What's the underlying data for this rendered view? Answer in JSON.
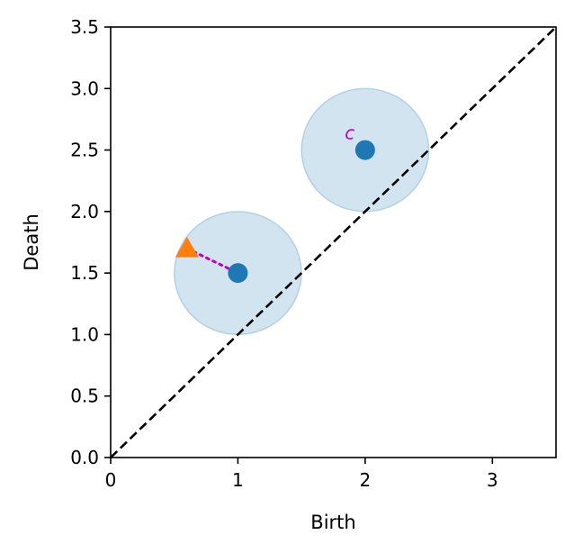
{
  "chart_data": {
    "type": "scatter",
    "xlabel": "Birth",
    "ylabel": "Death",
    "xlim": [
      0,
      3.5
    ],
    "ylim": [
      0,
      3.5
    ],
    "xticks": [
      {
        "value": 0,
        "label": "0"
      },
      {
        "value": 1,
        "label": "1"
      },
      {
        "value": 2,
        "label": "2"
      },
      {
        "value": 3,
        "label": "3"
      }
    ],
    "yticks": [
      {
        "value": 0.0,
        "label": "0.0"
      },
      {
        "value": 0.5,
        "label": "0.5"
      },
      {
        "value": 1.0,
        "label": "1.0"
      },
      {
        "value": 1.5,
        "label": "1.5"
      },
      {
        "value": 2.0,
        "label": "2.0"
      },
      {
        "value": 2.5,
        "label": "2.5"
      },
      {
        "value": 3.0,
        "label": "3.0"
      },
      {
        "value": 3.5,
        "label": "3.5"
      }
    ],
    "grid": false,
    "diagonal": {
      "from": [
        0,
        0
      ],
      "to": [
        3.5,
        3.5
      ],
      "style": "dashed",
      "color": "#000000"
    },
    "points": [
      {
        "x": 1.0,
        "y": 1.5,
        "marker": "circle",
        "color": "#1f77b4"
      },
      {
        "x": 2.0,
        "y": 2.5,
        "marker": "circle",
        "color": "#1f77b4"
      }
    ],
    "circles": [
      {
        "cx": 1.0,
        "cy": 1.5,
        "r": 0.5,
        "color": "#1f77b4"
      },
      {
        "cx": 2.0,
        "cy": 2.5,
        "r": 0.5,
        "color": "#1f77b4"
      }
    ],
    "triangle_point": {
      "x": 0.6,
      "y": 1.7,
      "marker": "triangle",
      "color": "#ff7f0e"
    },
    "connector": {
      "from": [
        0.6,
        1.7
      ],
      "to": [
        1.0,
        1.5
      ],
      "style": "dotted",
      "color": "#c000c0"
    },
    "annotations": [
      {
        "text": "c",
        "x": 1.84,
        "y": 2.59,
        "color": "#c000c0"
      }
    ]
  }
}
